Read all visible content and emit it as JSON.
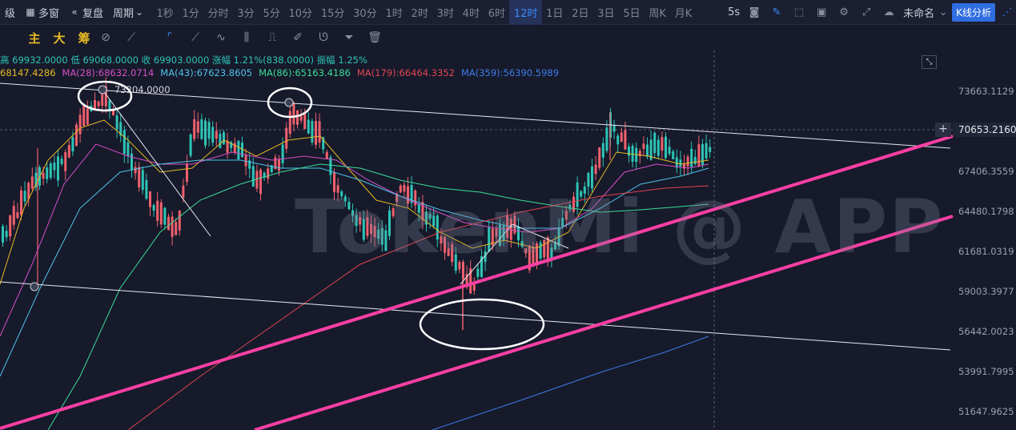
{
  "toolbar": {
    "level_label": "级",
    "multi_window": "多窗",
    "replay": "复盘",
    "period": "周期",
    "intervals": [
      "1秒",
      "1分",
      "分时",
      "3分",
      "5分",
      "10分",
      "15分",
      "30分",
      "1时",
      "2时",
      "3时",
      "4时",
      "6时",
      "12时",
      "1日",
      "2日",
      "3日",
      "5日",
      "周K",
      "月K"
    ],
    "active_interval": "12时",
    "speed": "5s",
    "layout_name": "未命名",
    "analysis_button": "K线分析"
  },
  "toolbar2": {
    "main_label": "主",
    "big_label": "大",
    "chips_label": "筹"
  },
  "ohlc": {
    "high_label": "高",
    "high": "69932.0000",
    "low_label": "低",
    "low": "69068.0000",
    "close_label": "收",
    "close": "69903.0000",
    "change_label": "涨幅",
    "change": "1.21%(838.0000)",
    "amplitude_label": "振幅",
    "amplitude": "1.25%"
  },
  "moving_averages": [
    {
      "label": "68147.4286",
      "color": "#e8b923"
    },
    {
      "label": "MA(28):68632.0714",
      "color": "#d84fc6"
    },
    {
      "label": "MA(43):67623.8605",
      "color": "#4fc3e8"
    },
    {
      "label": "MA(86):65163.4186",
      "color": "#3ddc97"
    },
    {
      "label": "MA(179):66464.3352",
      "color": "#e0464f"
    },
    {
      "label": "MA(359):56390.5989",
      "color": "#3d7be8"
    }
  ],
  "price_axis": [
    "73663.1129",
    "70653.2160",
    "67406.3559",
    "64480.1798",
    "61681.0319",
    "59003.3977",
    "56442.0023",
    "53991.7995",
    "51647.9625"
  ],
  "current_price": "70653.2160",
  "annotation_high": "73204.0000",
  "watermark": "TokenMi @ APP",
  "colors": {
    "up": "#2ec4b6",
    "down": "#f0616d",
    "trendline": "#ff3fa4",
    "accent": "#3d8bfd"
  }
}
